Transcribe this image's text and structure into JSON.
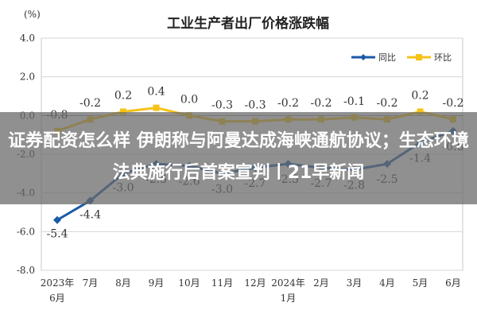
{
  "chart_data": {
    "type": "line",
    "title": "工业生产者出厂价格涨跌幅",
    "unit_label": "(%)",
    "categories": [
      [
        "2023年",
        "6月"
      ],
      [
        "7月"
      ],
      [
        "8月"
      ],
      [
        "9月"
      ],
      [
        "10月"
      ],
      [
        "11月"
      ],
      [
        "12月"
      ],
      [
        "2024年",
        "1月"
      ],
      [
        "2月"
      ],
      [
        "3月"
      ],
      [
        "4月"
      ],
      [
        "5月"
      ],
      [
        "6月"
      ]
    ],
    "ylim": [
      -8.0,
      4.0
    ],
    "yticks": [
      "4.0",
      "2.0",
      "0.0",
      "-2.0",
      "-4.0",
      "-6.0",
      "-8.0"
    ],
    "grid": true,
    "legend_position": "top-right",
    "series": [
      {
        "name": "同比",
        "color": "#1a5aa6",
        "values": [
          -5.4,
          -4.4,
          -3.0,
          -2.5,
          -2.6,
          -3.0,
          -2.7,
          -2.5,
          -2.7,
          -2.8,
          -2.5,
          -1.4,
          -0.8
        ],
        "labels": [
          "-5.4",
          "-4.4",
          "-3.0",
          "-2.5",
          "-2.6",
          "-3.0",
          "-2.7",
          "-2.5",
          "-2.7",
          "-2.8",
          "-2.5",
          "-1.4",
          "-0.8"
        ]
      },
      {
        "name": "环比",
        "color": "#f5c318",
        "values": [
          -0.8,
          -0.2,
          0.2,
          0.4,
          0.0,
          -0.3,
          -0.3,
          -0.2,
          -0.2,
          -0.1,
          -0.2,
          0.2,
          -0.2
        ],
        "labels": [
          "-0.8",
          "-0.2",
          "0.2",
          "0.4",
          "0.0",
          "-0.3",
          "-0.3",
          "-0.2",
          "-0.2",
          "-0.1",
          "-0.2",
          "0.2",
          "-0.2"
        ]
      }
    ]
  },
  "overlay": {
    "headline": "证券配资怎么样 伊朗称与阿曼达成海峡通航协议；生态环境法典施行后首案宣判丨21早新闻"
  }
}
